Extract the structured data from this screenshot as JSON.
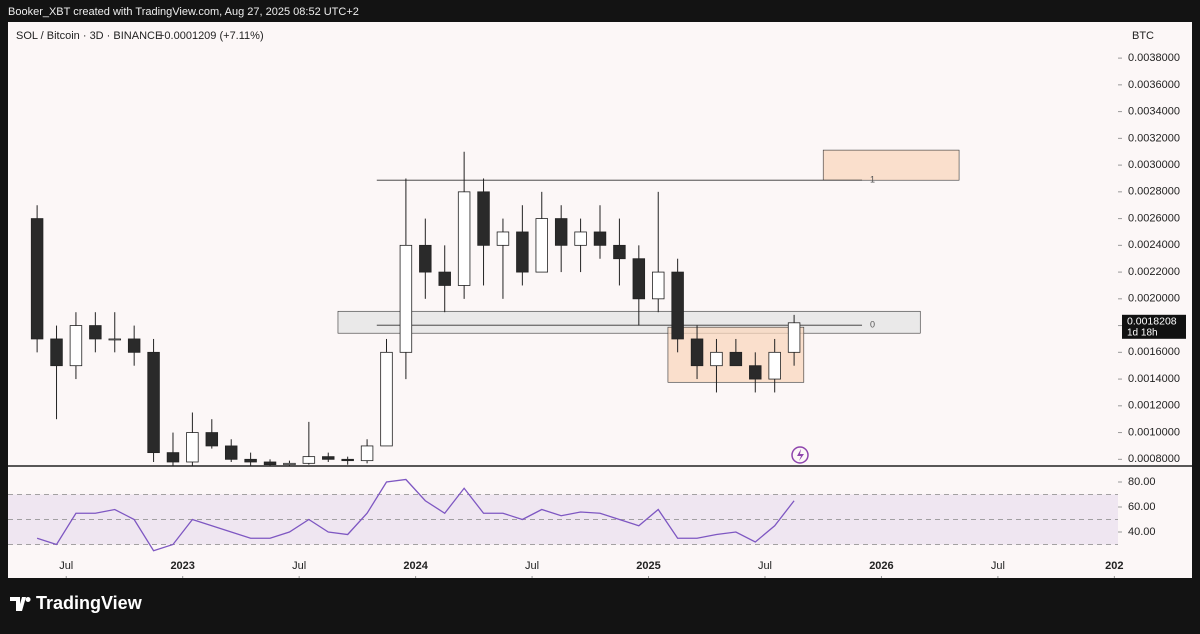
{
  "header": {
    "credit": "Booker_XBT created with TradingView.com, Aug 27, 2025 08:52 UTC+2",
    "brand": "TradingView"
  },
  "chart_data": [
    {
      "type": "candlestick",
      "title": "SOL / Bitcoin · 3D · BINANCE",
      "change_label": "+0.0001209 (+7.11%)",
      "y_axis_label": "BTC",
      "countdown": "1d 18h",
      "x": [
        "2022-05",
        "2022-06",
        "2022-07",
        "2022-08",
        "2022-09",
        "2022-10",
        "2022-11",
        "2022-12",
        "2023-01",
        "2023-02",
        "2023-03",
        "2023-04",
        "2023-05",
        "2023-06",
        "2023-07",
        "2023-08",
        "2023-09",
        "2023-10",
        "2023-11",
        "2023-12",
        "2024-01",
        "2024-02",
        "2024-03",
        "2024-04",
        "2024-05",
        "2024-06",
        "2024-07",
        "2024-08",
        "2024-09",
        "2024-10",
        "2024-11",
        "2024-12",
        "2025-01",
        "2025-02",
        "2025-03",
        "2025-04",
        "2025-05",
        "2025-06",
        "2025-07",
        "2025-08"
      ],
      "open": [
        0.0026,
        0.0017,
        0.0015,
        0.0018,
        0.0017,
        0.0017,
        0.0016,
        0.00085,
        0.00078,
        0.001,
        0.0009,
        0.0008,
        0.00078,
        0.00076,
        0.00077,
        0.00082,
        0.0008,
        0.00079,
        0.0009,
        0.0016,
        0.0024,
        0.0022,
        0.0021,
        0.0028,
        0.0024,
        0.0025,
        0.0022,
        0.0026,
        0.0024,
        0.0025,
        0.0024,
        0.0023,
        0.002,
        0.0022,
        0.0017,
        0.0015,
        0.0016,
        0.0015,
        0.0014,
        0.0016
      ],
      "high": [
        0.0027,
        0.0018,
        0.0019,
        0.0019,
        0.0019,
        0.0018,
        0.0017,
        0.001,
        0.00115,
        0.0011,
        0.00095,
        0.00085,
        0.0008,
        0.00079,
        0.00108,
        0.00085,
        0.00082,
        0.00095,
        0.0017,
        0.0029,
        0.0026,
        0.0024,
        0.0031,
        0.0029,
        0.0026,
        0.0027,
        0.0028,
        0.0027,
        0.0026,
        0.0027,
        0.0026,
        0.0024,
        0.0028,
        0.0023,
        0.0018,
        0.0017,
        0.0017,
        0.0016,
        0.0017,
        0.00188
      ],
      "low": [
        0.0016,
        0.0011,
        0.0014,
        0.0016,
        0.0016,
        0.0015,
        0.00078,
        0.00072,
        0.00075,
        0.00088,
        0.00078,
        0.00072,
        0.00073,
        0.00074,
        0.00076,
        0.00078,
        0.00076,
        0.00077,
        0.0009,
        0.0014,
        0.002,
        0.0019,
        0.002,
        0.0021,
        0.002,
        0.0021,
        0.0022,
        0.0022,
        0.0022,
        0.0023,
        0.0021,
        0.0018,
        0.0019,
        0.0016,
        0.0014,
        0.0013,
        0.0015,
        0.0013,
        0.0013,
        0.0015
      ],
      "close": [
        0.0017,
        0.0015,
        0.0018,
        0.0017,
        0.0017,
        0.0016,
        0.00085,
        0.00078,
        0.001,
        0.0009,
        0.0008,
        0.00078,
        0.00076,
        0.00077,
        0.00082,
        0.0008,
        0.00079,
        0.0009,
        0.0016,
        0.0024,
        0.0022,
        0.0021,
        0.0028,
        0.0024,
        0.0025,
        0.0022,
        0.0026,
        0.0024,
        0.0025,
        0.0024,
        0.0023,
        0.002,
        0.0022,
        0.0017,
        0.0015,
        0.0016,
        0.0015,
        0.0014,
        0.0016,
        0.0018208
      ],
      "up_color": "#ffffff",
      "down_color": "#2a2a2a",
      "xlim": [
        "2022-04",
        "2027-05"
      ],
      "xticks": [
        {
          "value": "2022-07",
          "label": "Jul"
        },
        {
          "value": "2023-01",
          "label": "2023"
        },
        {
          "value": "2023-07",
          "label": "Jul"
        },
        {
          "value": "2024-01",
          "label": "2024"
        },
        {
          "value": "2024-07",
          "label": "Jul"
        },
        {
          "value": "2025-01",
          "label": "2025"
        },
        {
          "value": "2025-07",
          "label": "Jul"
        },
        {
          "value": "2026-01",
          "label": "2026"
        },
        {
          "value": "2026-07",
          "label": "Jul"
        },
        {
          "value": "2027-01",
          "label": "202"
        }
      ],
      "ylim": [
        0.00075,
        0.00407
      ],
      "yticks": [
        {
          "value": 0.0008,
          "label": "0.0008000"
        },
        {
          "value": 0.001,
          "label": "0.0010000"
        },
        {
          "value": 0.0012,
          "label": "0.0012000"
        },
        {
          "value": 0.0014,
          "label": "0.0014000"
        },
        {
          "value": 0.0016,
          "label": "0.0016000"
        },
        {
          "value": 0.0018,
          "label": "0.0018000"
        },
        {
          "value": 0.002,
          "label": "0.0020000"
        },
        {
          "value": 0.0022,
          "label": "0.0022000"
        },
        {
          "value": 0.0024,
          "label": "0.0024000"
        },
        {
          "value": 0.0026,
          "label": "0.0026000"
        },
        {
          "value": 0.0028,
          "label": "0.0028000"
        },
        {
          "value": 0.003,
          "label": "0.0030000"
        },
        {
          "value": 0.0032,
          "label": "0.0032000"
        },
        {
          "value": 0.0034,
          "label": "0.0034000"
        },
        {
          "value": 0.0036,
          "label": "0.0036000"
        },
        {
          "value": 0.0038,
          "label": "0.0038000"
        }
      ],
      "zones": [
        {
          "x": [
            "2023-09",
            "2026-03"
          ],
          "y": [
            0.001743,
            0.001907
          ],
          "color": "#e4e4e4"
        },
        {
          "x": [
            "2025-02",
            "2025-09"
          ],
          "y": [
            0.001376,
            0.001788
          ],
          "color": "#f9d7bd"
        },
        {
          "x": [
            "2025-10",
            "2026-05"
          ],
          "y": [
            0.002887,
            0.003112
          ],
          "color": "#f9d7bd"
        }
      ],
      "levels": [
        {
          "label": "1",
          "value": 0.002887,
          "x": [
            "2023-11",
            "2025-12"
          ]
        },
        {
          "label": "0",
          "value": 0.001803,
          "x": [
            "2023-11",
            "2025-12"
          ]
        }
      ]
    },
    {
      "type": "line",
      "x": [
        "2022-05",
        "2022-06",
        "2022-07",
        "2022-08",
        "2022-09",
        "2022-10",
        "2022-11",
        "2022-12",
        "2023-01",
        "2023-02",
        "2023-03",
        "2023-04",
        "2023-05",
        "2023-06",
        "2023-07",
        "2023-08",
        "2023-09",
        "2023-10",
        "2023-11",
        "2023-12",
        "2024-01",
        "2024-02",
        "2024-03",
        "2024-04",
        "2024-05",
        "2024-06",
        "2024-07",
        "2024-08",
        "2024-09",
        "2024-10",
        "2024-11",
        "2024-12",
        "2025-01",
        "2025-02",
        "2025-03",
        "2025-04",
        "2025-05",
        "2025-06",
        "2025-07",
        "2025-08"
      ],
      "series": [
        {
          "color": "#7e57c2",
          "values": [
            35,
            30,
            55,
            55,
            58,
            50,
            25,
            30,
            50,
            45,
            40,
            35,
            35,
            40,
            50,
            40,
            38,
            55,
            80,
            82,
            65,
            55,
            75,
            55,
            55,
            50,
            58,
            53,
            56,
            55,
            50,
            45,
            58,
            35,
            35,
            38,
            40,
            32,
            45,
            65
          ]
        }
      ],
      "levels": [
        30,
        50,
        70
      ],
      "xlim": [
        "2022-04",
        "2027-05"
      ],
      "ylim": [
        3.2,
        92.8
      ],
      "yticks": [
        {
          "value": 40,
          "label": "40.00"
        },
        {
          "value": 60,
          "label": "60.00"
        },
        {
          "value": 80,
          "label": "80.00"
        }
      ]
    }
  ]
}
